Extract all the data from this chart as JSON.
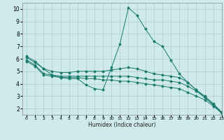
{
  "xlabel": "Humidex (Indice chaleur)",
  "background_color": "#ceeaea",
  "grid_color": "#b0cccc",
  "line_color": "#1a7a6e",
  "xlim": [
    -0.5,
    23
  ],
  "ylim": [
    1.5,
    10.5
  ],
  "xticks": [
    0,
    1,
    2,
    3,
    4,
    5,
    6,
    7,
    8,
    9,
    10,
    11,
    12,
    13,
    14,
    15,
    16,
    17,
    18,
    19,
    20,
    21,
    22,
    23
  ],
  "yticks": [
    2,
    3,
    4,
    5,
    6,
    7,
    8,
    9,
    10
  ],
  "series": [
    {
      "x": [
        0,
        1,
        2,
        3,
        4,
        5,
        6,
        7,
        8,
        9,
        10,
        11,
        12,
        13,
        14,
        15,
        16,
        17,
        18,
        19,
        20,
        21,
        22,
        23
      ],
      "y": [
        6.2,
        5.8,
        5.2,
        4.7,
        4.5,
        4.4,
        4.4,
        3.9,
        3.6,
        3.5,
        5.3,
        7.2,
        10.1,
        9.5,
        8.4,
        7.4,
        7.0,
        5.9,
        4.8,
        4.1,
        3.5,
        2.9,
        2.3,
        1.6
      ]
    },
    {
      "x": [
        0,
        1,
        2,
        3,
        4,
        5,
        6,
        7,
        8,
        9,
        10,
        11,
        12,
        13,
        14,
        15,
        16,
        17,
        18,
        19,
        20,
        21,
        22,
        23
      ],
      "y": [
        6.1,
        5.7,
        5.2,
        5.0,
        4.9,
        4.9,
        5.0,
        5.0,
        5.0,
        5.0,
        5.1,
        5.2,
        5.3,
        5.2,
        5.0,
        4.8,
        4.7,
        4.6,
        4.5,
        4.1,
        3.5,
        3.0,
        2.4,
        1.7
      ]
    },
    {
      "x": [
        0,
        1,
        2,
        3,
        4,
        5,
        6,
        7,
        8,
        9,
        10,
        11,
        12,
        13,
        14,
        15,
        16,
        17,
        18,
        19,
        20,
        21,
        22,
        23
      ],
      "y": [
        5.9,
        5.5,
        4.8,
        4.7,
        4.6,
        4.6,
        4.6,
        4.6,
        4.6,
        4.6,
        4.6,
        4.6,
        4.6,
        4.5,
        4.4,
        4.3,
        4.3,
        4.2,
        4.1,
        3.8,
        3.4,
        2.9,
        2.3,
        1.7
      ]
    },
    {
      "x": [
        0,
        1,
        2,
        3,
        4,
        5,
        6,
        7,
        8,
        9,
        10,
        11,
        12,
        13,
        14,
        15,
        16,
        17,
        18,
        19,
        20,
        21,
        22,
        23
      ],
      "y": [
        5.8,
        5.4,
        4.7,
        4.6,
        4.5,
        4.5,
        4.5,
        4.4,
        4.4,
        4.3,
        4.3,
        4.2,
        4.2,
        4.1,
        4.0,
        3.9,
        3.8,
        3.7,
        3.6,
        3.3,
        3.0,
        2.7,
        2.2,
        1.65
      ]
    }
  ]
}
